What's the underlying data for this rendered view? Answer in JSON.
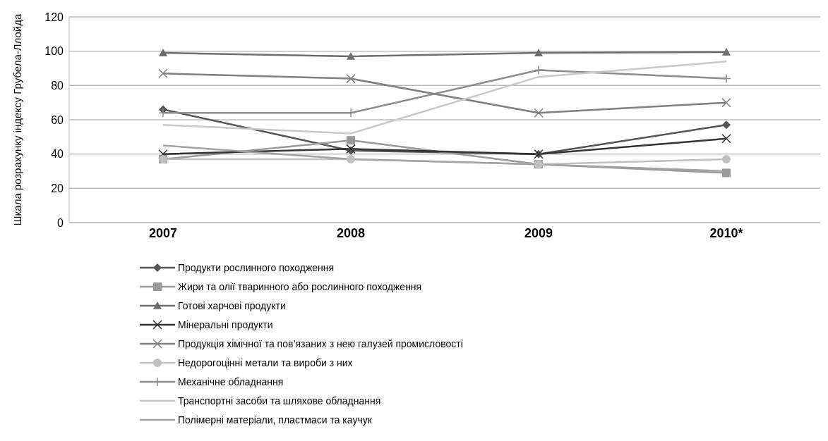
{
  "chart_data": {
    "type": "line",
    "ylabel": "Шкала розрахунку індексу  Грубела-Ллойда",
    "categories": [
      "2007",
      "2008",
      "2009",
      "2010*"
    ],
    "ylim": [
      0,
      120
    ],
    "yticks": [
      0,
      20,
      40,
      60,
      80,
      100,
      120
    ],
    "grid": "y",
    "legend": "bottom",
    "series": [
      {
        "name": "Продукти рослинного походження",
        "color": "#555555",
        "marker": "diamond",
        "values": [
          66,
          42,
          40,
          57
        ]
      },
      {
        "name": "Жири та олії тваринного або рослинного походження",
        "color": "#999999",
        "marker": "square",
        "values": [
          37,
          48,
          34,
          29
        ]
      },
      {
        "name": "Готові харчові продукти",
        "color": "#6e6e6e",
        "marker": "triangle",
        "values": [
          99,
          97,
          99,
          99.5
        ]
      },
      {
        "name": "Мінеральні продукти",
        "color": "#333333",
        "marker": "cross",
        "values": [
          40,
          43,
          40,
          49
        ]
      },
      {
        "name": "Продукція хімічної та пов’язаних з нею галузей промисловості",
        "color": "#7f7f7f",
        "marker": "cross",
        "values": [
          87,
          84,
          64,
          70
        ]
      },
      {
        "name": "Недорогоцінні метали та вироби з них",
        "color": "#c0c0c0",
        "marker": "circle",
        "values": [
          37,
          37,
          34,
          37
        ]
      },
      {
        "name": "Механічне обладнання",
        "color": "#8c8c8c",
        "marker": "plus",
        "values": [
          64,
          64,
          89,
          84
        ]
      },
      {
        "name": "Транспортні засоби та шляхове обладнання",
        "color": "#c8c8c8",
        "marker": "none",
        "values": [
          57,
          52,
          85,
          94
        ]
      },
      {
        "name": "Полімерні матеріали, пластмаси та каучук",
        "color": "#a3a3a3",
        "marker": "none",
        "values": [
          45,
          37,
          34,
          30
        ]
      }
    ]
  }
}
